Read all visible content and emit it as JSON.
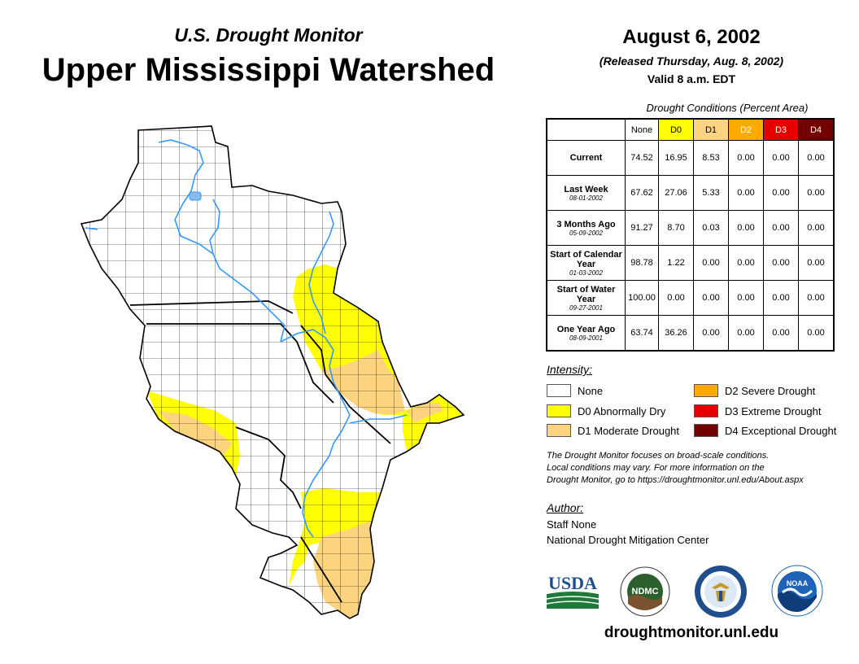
{
  "header": {
    "subtitle": "U.S. Drought Monitor",
    "region": "Upper Mississippi Watershed",
    "date": "August 6, 2002",
    "released": "(Released Thursday, Aug. 8, 2002)",
    "valid": "Valid 8 a.m. EDT"
  },
  "stats": {
    "caption": "Drought Conditions (Percent Area)",
    "columns": [
      "None",
      "D0",
      "D1",
      "D2",
      "D3",
      "D4"
    ],
    "column_colors": [
      "#ffffff",
      "#ffff00",
      "#fcd37f",
      "#ffaa00",
      "#e60000",
      "#730000"
    ],
    "rows": [
      {
        "label": "Current",
        "date": "",
        "values": [
          "74.52",
          "16.95",
          "8.53",
          "0.00",
          "0.00",
          "0.00"
        ]
      },
      {
        "label": "Last Week",
        "date": "08-01-2002",
        "values": [
          "67.62",
          "27.06",
          "5.33",
          "0.00",
          "0.00",
          "0.00"
        ]
      },
      {
        "label": "3 Months Ago",
        "date": "05-09-2002",
        "values": [
          "91.27",
          "8.70",
          "0.03",
          "0.00",
          "0.00",
          "0.00"
        ]
      },
      {
        "label": "Start of Calendar Year",
        "date": "01-03-2002",
        "values": [
          "98.78",
          "1.22",
          "0.00",
          "0.00",
          "0.00",
          "0.00"
        ]
      },
      {
        "label": "Start of Water Year",
        "date": "09-27-2001",
        "values": [
          "100.00",
          "0.00",
          "0.00",
          "0.00",
          "0.00",
          "0.00"
        ]
      },
      {
        "label": "One Year Ago",
        "date": "08-09-2001",
        "values": [
          "63.74",
          "36.26",
          "0.00",
          "0.00",
          "0.00",
          "0.00"
        ]
      }
    ]
  },
  "legend": {
    "title": "Intensity:",
    "items": [
      {
        "label": "None",
        "color": "#ffffff"
      },
      {
        "label": "D0 Abnormally Dry",
        "color": "#ffff00"
      },
      {
        "label": "D1 Moderate Drought",
        "color": "#fcd37f"
      },
      {
        "label": "D2 Severe Drought",
        "color": "#ffaa00"
      },
      {
        "label": "D3 Extreme Drought",
        "color": "#e60000"
      },
      {
        "label": "D4 Exceptional Drought",
        "color": "#730000"
      }
    ]
  },
  "disclaimer": {
    "line1": "The Drought Monitor focuses on broad-scale conditions.",
    "line2": "Local conditions may vary. For more information on the",
    "line3": "Drought Monitor, go to https://droughtmonitor.unl.edu/About.aspx"
  },
  "author": {
    "title": "Author:",
    "name": "Staff None",
    "org": "National Drought Mitigation Center"
  },
  "logos": {
    "usda": "USDA",
    "ndmc": "NDMC",
    "noaa": "NOAA"
  },
  "website": "droughtmonitor.unl.edu",
  "map": {
    "water_color": "#3399ff",
    "d0_color": "#ffff00",
    "d1_color": "#fcd37f"
  }
}
